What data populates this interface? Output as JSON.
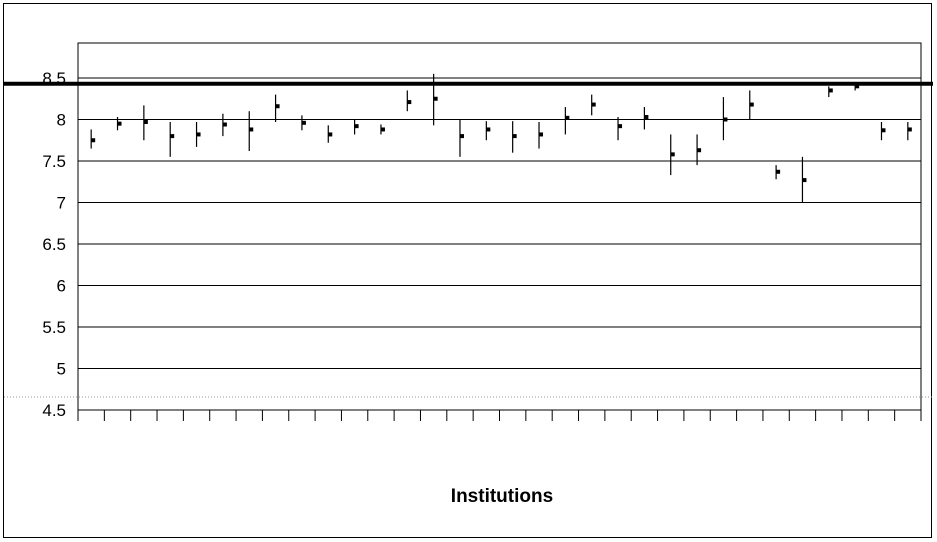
{
  "chart_data": {
    "type": "scatter",
    "subtype": "error-bar / hi-lo-mean per institution",
    "title": "",
    "xlabel": "Institutions",
    "ylabel": "",
    "ylim": [
      4.5,
      8.5
    ],
    "yticks": [
      "4.5",
      "5",
      "5.5",
      "6",
      "6.5",
      "7",
      "7.5",
      "8",
      "8.5"
    ],
    "grid": true,
    "legend": "none",
    "reference_line": {
      "y": 8.43,
      "style": "thick black horizontal"
    },
    "colors": {
      "marks": "#000000",
      "grid": "#000000",
      "background": "#ffffff"
    },
    "series": [
      {
        "points": [
          {
            "mean": 7.75,
            "low": 7.65,
            "high": 7.88
          },
          {
            "mean": 7.95,
            "low": 7.87,
            "high": 8.03
          },
          {
            "mean": 7.97,
            "low": 7.75,
            "high": 8.17
          },
          {
            "mean": 7.8,
            "low": 7.55,
            "high": 7.97
          },
          {
            "mean": 7.82,
            "low": 7.67,
            "high": 7.97
          },
          {
            "mean": 7.94,
            "low": 7.8,
            "high": 8.07
          },
          {
            "mean": 7.88,
            "low": 7.62,
            "high": 8.1
          },
          {
            "mean": 8.16,
            "low": 7.97,
            "high": 8.3
          },
          {
            "mean": 7.96,
            "low": 7.87,
            "high": 8.05
          },
          {
            "mean": 7.82,
            "low": 7.72,
            "high": 7.93
          },
          {
            "mean": 7.92,
            "low": 7.82,
            "high": 8.0
          },
          {
            "mean": 7.88,
            "low": 7.82,
            "high": 7.94
          },
          {
            "mean": 8.21,
            "low": 8.1,
            "high": 8.35
          },
          {
            "mean": 8.25,
            "low": 7.93,
            "high": 8.55
          },
          {
            "mean": 7.8,
            "low": 7.55,
            "high": 8.0
          },
          {
            "mean": 7.88,
            "low": 7.75,
            "high": 7.98
          },
          {
            "mean": 7.8,
            "low": 7.6,
            "high": 7.98
          },
          {
            "mean": 7.82,
            "low": 7.65,
            "high": 7.97
          },
          {
            "mean": 8.02,
            "low": 7.82,
            "high": 8.15
          },
          {
            "mean": 8.18,
            "low": 8.05,
            "high": 8.3
          },
          {
            "mean": 7.92,
            "low": 7.75,
            "high": 8.03
          },
          {
            "mean": 8.03,
            "low": 7.88,
            "high": 8.15
          },
          {
            "mean": 7.58,
            "low": 7.33,
            "high": 7.82
          },
          {
            "mean": 7.63,
            "low": 7.45,
            "high": 7.82
          },
          {
            "mean": 8.0,
            "low": 7.75,
            "high": 8.27
          },
          {
            "mean": 8.18,
            "low": 8.0,
            "high": 8.35
          },
          {
            "mean": 7.37,
            "low": 7.28,
            "high": 7.45
          },
          {
            "mean": 7.27,
            "low": 7.0,
            "high": 7.55
          },
          {
            "mean": 8.35,
            "low": 8.27,
            "high": 8.4
          },
          {
            "mean": 8.4,
            "low": 8.35,
            "high": 8.45
          },
          {
            "mean": 7.87,
            "low": 7.75,
            "high": 7.97
          },
          {
            "mean": 7.88,
            "low": 7.75,
            "high": 7.97
          }
        ]
      }
    ]
  }
}
